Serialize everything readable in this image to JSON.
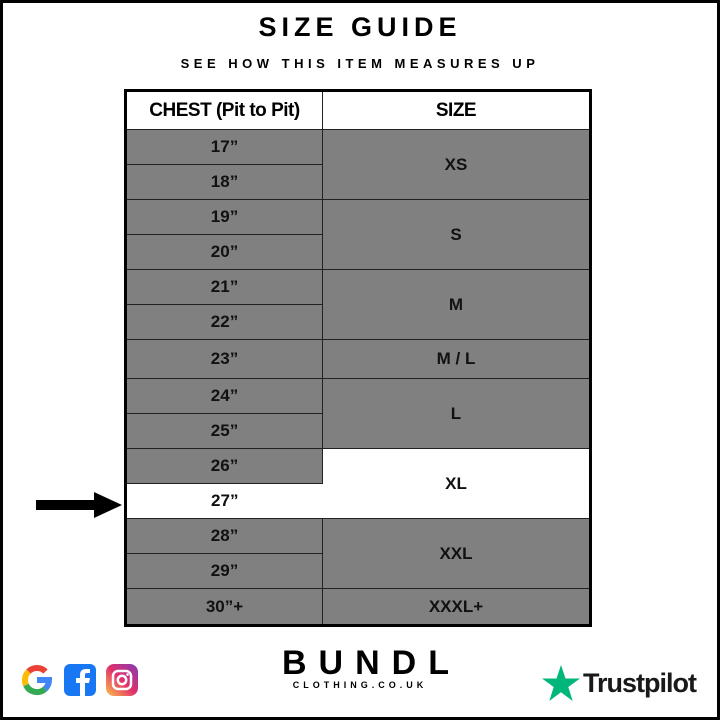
{
  "title": "SIZE GUIDE",
  "subtitle": "SEE HOW THIS ITEM MEASURES UP",
  "table": {
    "headers": [
      "CHEST (Pit to Pit)",
      "SIZE"
    ],
    "chest": [
      "17”",
      "18”",
      "19”",
      "20”",
      "21”",
      "22”",
      "23”",
      "24”",
      "25”",
      "26”",
      "27”",
      "28”",
      "29”",
      "30”+"
    ],
    "sizes": [
      "XS",
      "S",
      "M",
      "M / L",
      "L",
      "XL",
      "XXL",
      "XXXL+"
    ],
    "highlighted_chest": "27”",
    "highlighted_size": "XL"
  },
  "colors": {
    "cell_gray": "#808080",
    "highlight": "#ffffff",
    "trustpilot_green": "#00b67a"
  },
  "footer": {
    "social_icons": [
      "google-icon",
      "facebook-icon",
      "instagram-icon"
    ],
    "brand_name": "BUNDL",
    "brand_url": "CLOTHING.CO.UK",
    "trustpilot": "Trustpilot"
  }
}
